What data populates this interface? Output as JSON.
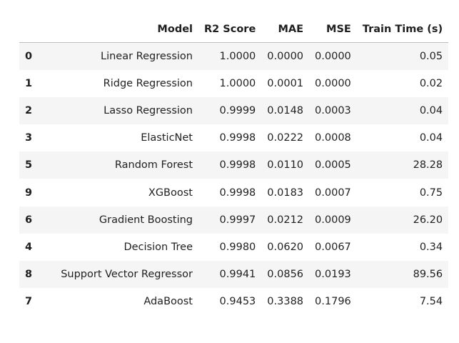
{
  "table": {
    "columns": [
      "Model",
      "R2 Score",
      "MAE",
      "MSE",
      "Train Time (s)"
    ],
    "rows": [
      {
        "index": "0",
        "model": "Linear Regression",
        "r2": "1.0000",
        "mae": "0.0000",
        "mse": "0.0000",
        "time": "0.05"
      },
      {
        "index": "1",
        "model": "Ridge Regression",
        "r2": "1.0000",
        "mae": "0.0001",
        "mse": "0.0000",
        "time": "0.02"
      },
      {
        "index": "2",
        "model": "Lasso Regression",
        "r2": "0.9999",
        "mae": "0.0148",
        "mse": "0.0003",
        "time": "0.04"
      },
      {
        "index": "3",
        "model": "ElasticNet",
        "r2": "0.9998",
        "mae": "0.0222",
        "mse": "0.0008",
        "time": "0.04"
      },
      {
        "index": "5",
        "model": "Random Forest",
        "r2": "0.9998",
        "mae": "0.0110",
        "mse": "0.0005",
        "time": "28.28"
      },
      {
        "index": "9",
        "model": "XGBoost",
        "r2": "0.9998",
        "mae": "0.0183",
        "mse": "0.0007",
        "time": "0.75"
      },
      {
        "index": "6",
        "model": "Gradient Boosting",
        "r2": "0.9997",
        "mae": "0.0212",
        "mse": "0.0009",
        "time": "26.20"
      },
      {
        "index": "4",
        "model": "Decision Tree",
        "r2": "0.9980",
        "mae": "0.0620",
        "mse": "0.0067",
        "time": "0.34"
      },
      {
        "index": "8",
        "model": "Support Vector Regressor",
        "r2": "0.9941",
        "mae": "0.0856",
        "mse": "0.0193",
        "time": "89.56"
      },
      {
        "index": "7",
        "model": "AdaBoost",
        "r2": "0.9453",
        "mae": "0.3388",
        "mse": "0.1796",
        "time": "7.54"
      }
    ]
  }
}
